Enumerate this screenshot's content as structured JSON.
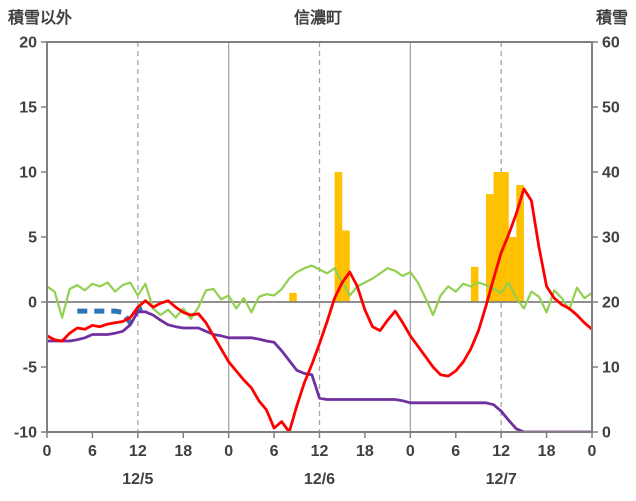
{
  "header": {
    "left": "積雪以外",
    "center": "信濃町",
    "right": "積雪"
  },
  "chart_data": {
    "type": "line",
    "title": "信濃町",
    "left_axis": {
      "label": "積雪以外",
      "min": -10,
      "max": 20,
      "ticks": [
        20,
        15,
        10,
        5,
        0,
        -5,
        -10
      ]
    },
    "right_axis": {
      "label": "積雪",
      "min": 0,
      "max": 60,
      "ticks": [
        60,
        50,
        40,
        30,
        20,
        10,
        0
      ]
    },
    "x_axis": {
      "hours_total": 72,
      "tick_step": 6,
      "tick_labels": [
        "0",
        "6",
        "12",
        "18",
        "0",
        "6",
        "12",
        "18",
        "0",
        "6",
        "12",
        "18",
        "0"
      ],
      "day_labels": [
        "12/5",
        "12/6",
        "12/7"
      ],
      "day_label_hours": [
        12,
        36,
        60
      ],
      "gridline_hours": [
        12,
        24,
        36,
        48,
        60
      ]
    },
    "colors": {
      "border": "#808080",
      "grid": "#a6a6a6",
      "zero_line": "#808080",
      "text": "#404040"
    },
    "series": [
      {
        "name": "precipitation",
        "type": "bar",
        "axis": "left",
        "color": "#FFC000",
        "bars": [
          {
            "hour": 32,
            "value": 0.7
          },
          {
            "hour": 38,
            "value": 10
          },
          {
            "hour": 39,
            "value": 5.5
          },
          {
            "hour": 56,
            "value": 2.7
          },
          {
            "hour": 58,
            "value": 8.3
          },
          {
            "hour": 59,
            "value": 10
          },
          {
            "hour": 60,
            "value": 10
          },
          {
            "hour": 61,
            "value": 5
          },
          {
            "hour": 62,
            "value": 9
          }
        ]
      },
      {
        "name": "green-line",
        "type": "line",
        "axis": "left",
        "color": "#92D050",
        "width": 2.2,
        "dash": null,
        "values": [
          1.2,
          0.8,
          -1.2,
          1.0,
          1.3,
          0.9,
          1.4,
          1.2,
          1.5,
          0.8,
          1.3,
          1.5,
          0.5,
          1.4,
          -0.5,
          -1.0,
          -0.6,
          -1.2,
          -0.5,
          -1.3,
          -0.4,
          0.9,
          1.0,
          0.2,
          0.5,
          -0.5,
          0.3,
          -0.8,
          0.4,
          0.6,
          0.5,
          1.0,
          1.8,
          2.3,
          2.6,
          2.8,
          2.5,
          2.2,
          2.6,
          1.5,
          0.5,
          1.2,
          1.5,
          1.8,
          2.2,
          2.6,
          2.4,
          2.0,
          2.3,
          1.5,
          0.3,
          -1.0,
          0.5,
          1.2,
          0.8,
          1.4,
          1.2,
          1.5,
          1.3,
          1.0,
          0.7,
          1.5,
          0.3,
          -0.5,
          0.8,
          0.4,
          -0.8,
          0.9,
          0.3,
          -0.6,
          1.1,
          0.3,
          0.7
        ]
      },
      {
        "name": "blue-dashed",
        "type": "line",
        "axis": "left",
        "color": "#2E75B6",
        "width": 5,
        "dash": "10 7",
        "values": [
          null,
          null,
          null,
          null,
          -0.7,
          -0.7,
          -0.7,
          -0.7,
          -0.7,
          -0.7,
          -0.8,
          -1.6,
          -0.6,
          -0.4,
          null,
          null,
          null,
          null,
          null,
          null,
          null,
          null,
          null,
          null,
          null,
          null,
          null,
          null,
          null,
          null,
          null,
          null,
          null,
          null,
          null,
          null,
          null,
          null,
          null,
          null,
          null,
          null,
          null,
          null,
          null,
          null,
          null,
          null,
          null,
          null,
          null,
          null,
          null,
          null,
          null,
          null,
          null,
          null,
          null,
          null,
          null,
          null,
          null,
          null,
          null,
          null,
          null,
          null,
          null,
          null,
          null,
          null,
          null
        ]
      },
      {
        "name": "snow-depth",
        "type": "line",
        "axis": "right",
        "color": "#7030A0",
        "width": 2.8,
        "dash": null,
        "values": [
          14,
          14,
          14,
          14,
          14.2,
          14.5,
          15,
          15,
          15,
          15.2,
          15.5,
          16.5,
          18.5,
          18.5,
          18,
          17.2,
          16.5,
          16.2,
          16,
          16,
          16,
          15.5,
          15,
          14.8,
          14.5,
          14.5,
          14.5,
          14.5,
          14.3,
          14,
          13.8,
          12.5,
          11,
          9.5,
          9,
          8.8,
          5.2,
          5,
          5,
          5,
          5,
          5,
          5,
          5,
          5,
          5,
          5,
          4.8,
          4.5,
          4.5,
          4.5,
          4.5,
          4.5,
          4.5,
          4.5,
          4.5,
          4.5,
          4.5,
          4.5,
          4.2,
          3.2,
          1.8,
          0.5,
          0,
          0,
          0,
          0,
          0,
          0,
          0,
          0,
          0,
          0
        ]
      },
      {
        "name": "temperature",
        "type": "line",
        "axis": "left",
        "color": "#FF0000",
        "width": 2.8,
        "dash": null,
        "values": [
          -2.6,
          -2.9,
          -3.0,
          -2.4,
          -2.0,
          -2.1,
          -1.8,
          -1.9,
          -1.7,
          -1.6,
          -1.5,
          -1.2,
          -0.4,
          0.1,
          -0.4,
          -0.1,
          0.1,
          -0.4,
          -0.8,
          -1.0,
          -0.9,
          -1.6,
          -2.6,
          -3.6,
          -4.6,
          -5.3,
          -6.0,
          -6.6,
          -7.6,
          -8.3,
          -9.7,
          -9.2,
          -10.0,
          -8.0,
          -6.2,
          -4.8,
          -3.2,
          -1.5,
          0.3,
          1.5,
          2.3,
          1.2,
          -0.6,
          -1.9,
          -2.2,
          -1.4,
          -0.7,
          -1.6,
          -2.6,
          -3.4,
          -4.2,
          -5.0,
          -5.6,
          -5.7,
          -5.3,
          -4.6,
          -3.6,
          -2.2,
          -0.3,
          1.8,
          3.8,
          5.2,
          6.8,
          8.7,
          7.8,
          4.2,
          1.2,
          0.3,
          -0.2,
          -0.5,
          -1.0,
          -1.6,
          -2.1
        ]
      }
    ]
  }
}
